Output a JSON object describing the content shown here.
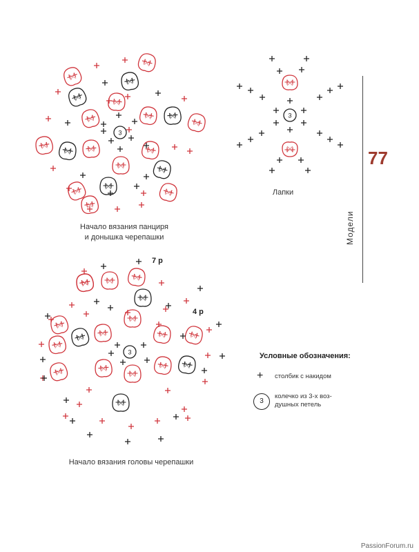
{
  "captions": {
    "body_line1": "Начало вязания панциря",
    "body_line2": "и донышка черепашки",
    "paws": "Лапки",
    "head": "Начало вязания головы черепашки"
  },
  "row_labels": {
    "r7": "7 р",
    "r4": "4 р"
  },
  "center_ring_number": "3",
  "page": {
    "number": "77",
    "section": "Модели",
    "watermark": "PassionForum.ru"
  },
  "legend": {
    "title": "Условные обозначения:",
    "plus_text": "столбик с накидом",
    "ring_number": "3",
    "ring_text_line1": "колечко из 3-х воз-",
    "ring_text_line2": "душных петель"
  },
  "colors": {
    "red": "#d0343b",
    "black": "#222222",
    "accent": "#9e3b2e"
  }
}
